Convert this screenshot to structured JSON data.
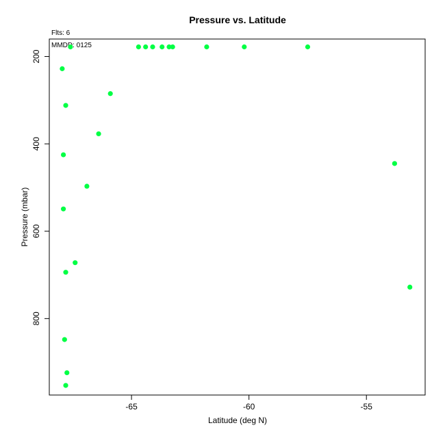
{
  "chart_data": {
    "type": "scatter",
    "title": "Pressure vs. Latitude",
    "xlabel": "Latitude (deg N)",
    "ylabel": "Pressure (mbar)",
    "annotation_top": "Flts: 6",
    "annotation_inset": "MMDD: 0125",
    "point_color": "#00FF44",
    "xlim": [
      -68.5,
      -52.5
    ],
    "ylim": [
      975,
      160
    ],
    "y_reversed": true,
    "x_ticks": [
      -65,
      -60,
      -55
    ],
    "y_ticks": [
      200,
      400,
      600,
      800
    ],
    "grid": false,
    "points": [
      {
        "x": -67.6,
        "y": 178
      },
      {
        "x": -64.7,
        "y": 178
      },
      {
        "x": -64.4,
        "y": 178
      },
      {
        "x": -64.1,
        "y": 178
      },
      {
        "x": -63.7,
        "y": 178
      },
      {
        "x": -63.4,
        "y": 178
      },
      {
        "x": -63.25,
        "y": 178
      },
      {
        "x": -61.8,
        "y": 178
      },
      {
        "x": -60.2,
        "y": 178
      },
      {
        "x": -57.5,
        "y": 178
      },
      {
        "x": -67.95,
        "y": 228
      },
      {
        "x": -65.9,
        "y": 285
      },
      {
        "x": -67.8,
        "y": 312
      },
      {
        "x": -66.4,
        "y": 377
      },
      {
        "x": -67.9,
        "y": 425
      },
      {
        "x": -53.8,
        "y": 445
      },
      {
        "x": -66.9,
        "y": 497
      },
      {
        "x": -67.9,
        "y": 549
      },
      {
        "x": -67.4,
        "y": 672
      },
      {
        "x": -67.8,
        "y": 694
      },
      {
        "x": -53.15,
        "y": 728
      },
      {
        "x": -67.85,
        "y": 848
      },
      {
        "x": -67.75,
        "y": 924
      },
      {
        "x": -67.8,
        "y": 953
      }
    ]
  }
}
